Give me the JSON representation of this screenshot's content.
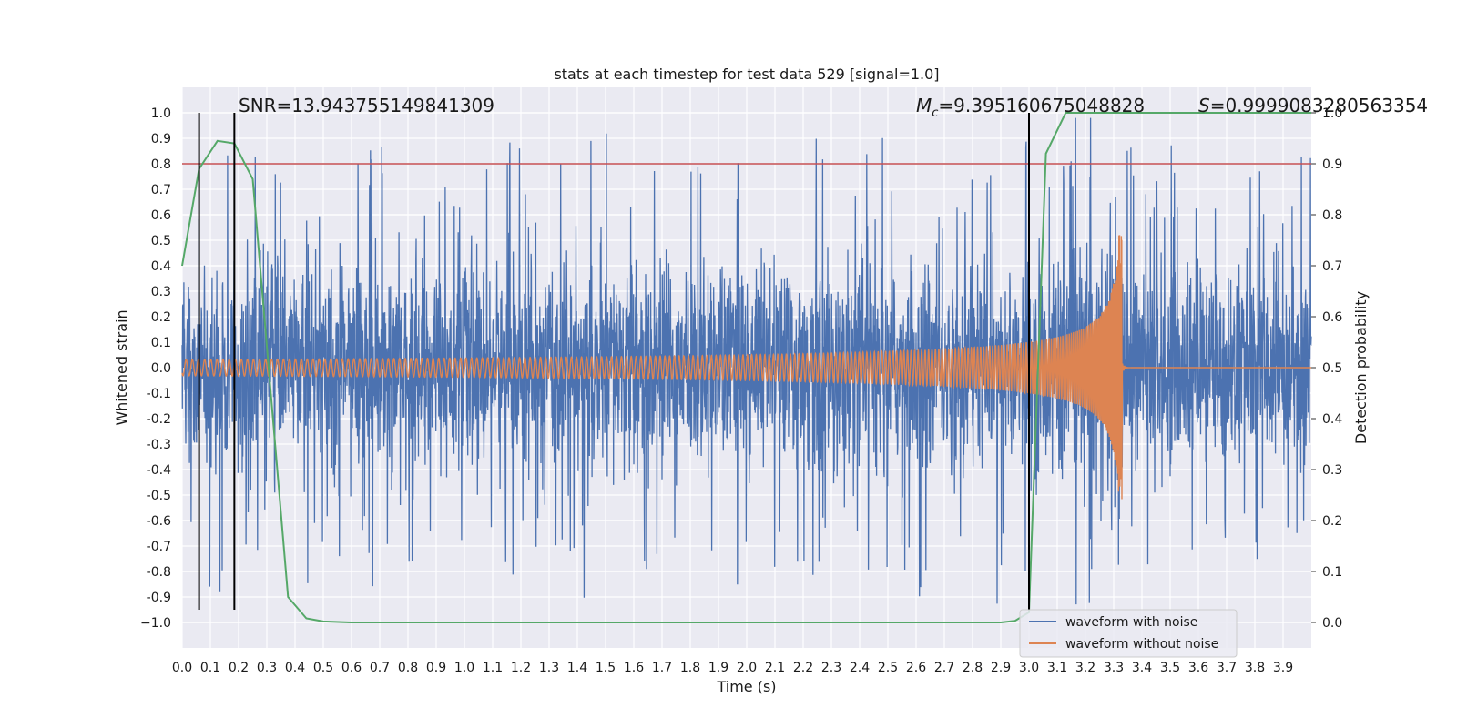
{
  "chart_data": {
    "type": "line",
    "title": "stats at each timestep for test data 529 [signal=1.0]",
    "xlabel": "Time (s)",
    "ylabel": "Whitened strain",
    "ylabel_right": "Detection probability",
    "xlim": [
      0.0,
      4.0
    ],
    "ylim": [
      -1.1,
      1.1
    ],
    "ylim_right": [
      -0.05,
      1.05
    ],
    "x_ticks": [
      "0.0",
      "0.1",
      "0.2",
      "0.3",
      "0.4",
      "0.5",
      "0.6",
      "0.7",
      "0.8",
      "0.9",
      "1.0",
      "1.1",
      "1.2",
      "1.3",
      "1.4",
      "1.5",
      "1.6",
      "1.7",
      "1.8",
      "1.9",
      "2.0",
      "2.1",
      "2.2",
      "2.3",
      "2.4",
      "2.5",
      "2.6",
      "2.7",
      "2.8",
      "2.9",
      "3.0",
      "3.1",
      "3.2",
      "3.3",
      "3.4",
      "3.5",
      "3.6",
      "3.7",
      "3.8",
      "3.9"
    ],
    "y_ticks": [
      "1.0",
      "0.9",
      "0.8",
      "0.7",
      "0.6",
      "0.5",
      "0.4",
      "0.3",
      "0.2",
      "0.1",
      "0.0",
      "-0.1",
      "-0.2",
      "-0.3",
      "-0.4",
      "-0.5",
      "-0.6",
      "-0.7",
      "-0.8",
      "-0.9",
      "−1.0"
    ],
    "y_ticks_right": [
      "1.0",
      "0.9",
      "0.8",
      "0.7",
      "0.6",
      "0.5",
      "0.4",
      "0.3",
      "0.2",
      "0.1",
      "0.0"
    ],
    "annotations": {
      "snr": "SNR=13.943755149841309",
      "mc_symbol": "M",
      "mc_sub": "c",
      "mc_value": "=9.395160675048828",
      "s_symbol": "S",
      "s_value": "=0.9999083280563354"
    },
    "threshold_right": 0.9,
    "vertical_lines_x": [
      0.06,
      0.185,
      3.0
    ],
    "vertical_lines_range": [
      -0.95,
      1.0
    ],
    "series": [
      {
        "name": "waveform with noise",
        "color": "#4c72b0",
        "description_value": "noise amplitude ~0.35 typical, spikes to ~0.88"
      },
      {
        "name": "waveform without noise",
        "color": "#dd8452",
        "merger_time": 3.33,
        "peak_amplitude": 0.52
      },
      {
        "name": "detection probability",
        "color": "#55a868",
        "axis": "right",
        "x": [
          0.0,
          0.06,
          0.125,
          0.185,
          0.25,
          0.375,
          0.44,
          0.5,
          0.6,
          1.0,
          2.0,
          2.9,
          2.95,
          3.0,
          3.06,
          3.13,
          3.2,
          3.5,
          3.9,
          4.0
        ],
        "y": [
          0.7,
          0.89,
          0.945,
          0.94,
          0.87,
          0.05,
          0.008,
          0.002,
          0.0,
          0.0,
          0.0,
          0.0,
          0.003,
          0.02,
          0.92,
          1.0,
          1.0,
          1.0,
          1.0,
          1.0
        ]
      }
    ],
    "legend": {
      "position": "lower-right",
      "entries": [
        "waveform with noise",
        "waveform without noise"
      ]
    },
    "colors": {
      "plot_bg": "#eaeaf2",
      "grid": "#ffffff",
      "threshold": "#c44e52",
      "vline": "#000000"
    }
  }
}
